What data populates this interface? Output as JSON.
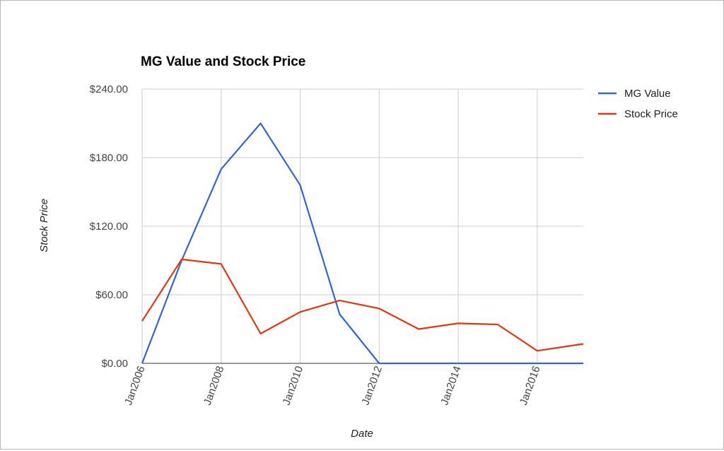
{
  "chart_data": {
    "type": "line",
    "title": "MG Value and Stock Price",
    "xlabel": "Date",
    "ylabel": "Stock Price",
    "x": [
      "2006-01",
      "2007-01",
      "2008-01",
      "2009-01",
      "2010-01",
      "2011-01",
      "2012-01",
      "2013-01",
      "2014-01",
      "2015-01",
      "2016-01",
      "2017-03"
    ],
    "x_tick_labels": [
      "Jan2006",
      "Jan2008",
      "Jan2010",
      "Jan2012",
      "Jan2014",
      "Jan2016"
    ],
    "xlim": [
      "2006-01",
      "2017-03"
    ],
    "y_tick_labels": [
      "$0.00",
      "$60.00",
      "$120.00",
      "$180.00",
      "$240.00"
    ],
    "y_ticks": [
      0,
      60,
      120,
      180,
      240
    ],
    "ylim": [
      0,
      240
    ],
    "grid": true,
    "legend_position": "right",
    "series": [
      {
        "name": "MG Value",
        "color": "#3366cc",
        "values": [
          0,
          90,
          170,
          210,
          156,
          43,
          0,
          0,
          0,
          0,
          0,
          0
        ]
      },
      {
        "name": "Stock Price",
        "color": "#dc3912",
        "values": [
          37,
          91,
          87,
          26,
          45,
          55,
          48,
          30,
          35,
          34,
          11,
          17
        ]
      }
    ]
  }
}
